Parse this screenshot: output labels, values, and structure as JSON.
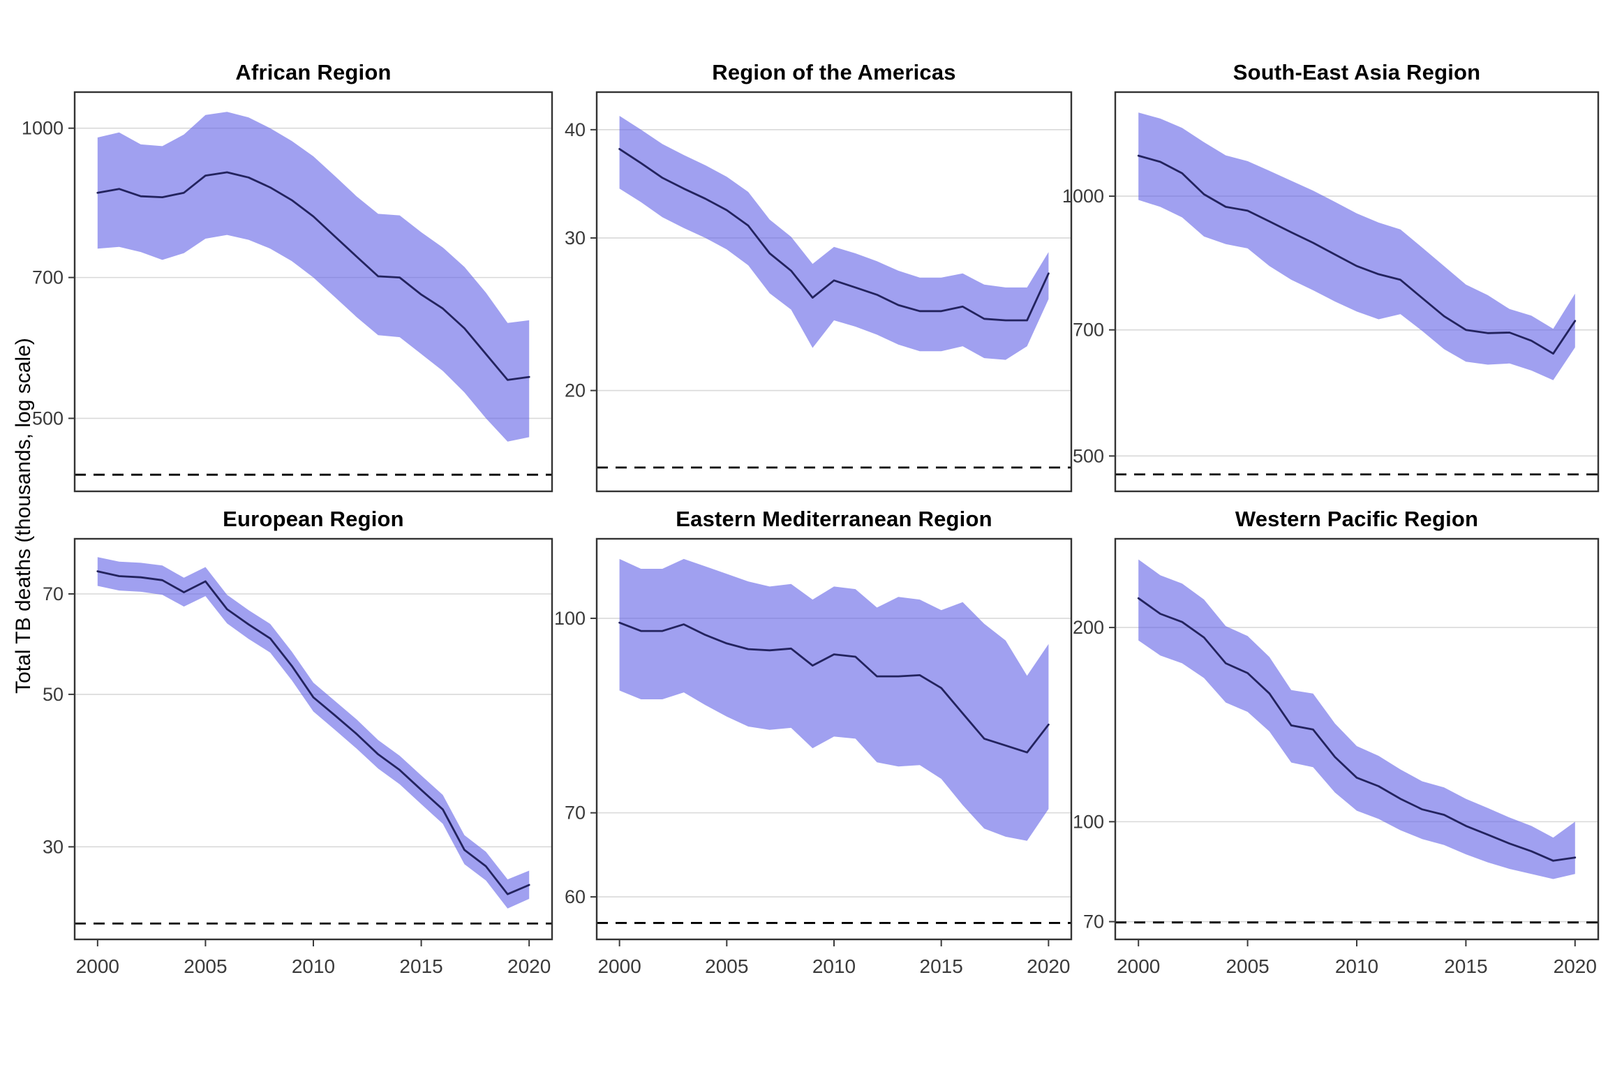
{
  "figure": {
    "ylabel": "Total TB deaths (thousands, log scale)",
    "background": "#ffffff",
    "colors": {
      "ribbon": "rgba(97,97,230,0.6)",
      "line": "#23235E",
      "grid": "#D9D9D9",
      "dashed_line": "#000000",
      "panel_border": "#333333",
      "tick_text": "#3A3A3A",
      "title_text": "#000000"
    }
  },
  "chart_data": {
    "type": "line",
    "subtype": "line-with-confidence-band-log-scale",
    "years": [
      2000,
      2001,
      2002,
      2003,
      2004,
      2005,
      2006,
      2007,
      2008,
      2009,
      2010,
      2011,
      2012,
      2013,
      2014,
      2015,
      2016,
      2017,
      2018,
      2019,
      2020
    ],
    "x_ticks": [
      2000,
      2005,
      2010,
      2015,
      2020
    ],
    "x_range": [
      2000,
      2020
    ],
    "grid": "major-horizontal-only",
    "legend": "none",
    "dashed_line_meaning": "horizontal reference line near bottom of each panel",
    "panels": [
      {
        "title": "African Region",
        "yticks": [
          1000,
          700,
          500
        ],
        "ylim": [
          420,
          1090
        ],
        "dashed": 437,
        "values": [
          857,
          865,
          850,
          848,
          857,
          893,
          900,
          889,
          868,
          842,
          810,
          772,
          736,
          702,
          700,
          672,
          650,
          620,
          583,
          548,
          552
        ],
        "lower": [
          750,
          753,
          744,
          730,
          742,
          768,
          775,
          766,
          750,
          728,
          700,
          668,
          637,
          610,
          607,
          583,
          560,
          532,
          500,
          473,
          478
        ],
        "upper": [
          978,
          990,
          962,
          958,
          985,
          1032,
          1040,
          1026,
          1000,
          970,
          935,
          892,
          850,
          815,
          812,
          780,
          752,
          718,
          675,
          628,
          632
        ]
      },
      {
        "title": "Region of the Americas",
        "yticks": [
          40,
          30,
          20
        ],
        "ylim": [
          15.3,
          44.2
        ],
        "dashed": 16.3,
        "values": [
          38.0,
          36.6,
          35.2,
          34.2,
          33.3,
          32.3,
          31.0,
          28.8,
          27.5,
          25.6,
          26.8,
          26.3,
          25.8,
          25.1,
          24.7,
          24.7,
          25.0,
          24.2,
          24.1,
          24.1,
          27.3
        ],
        "lower": [
          34.2,
          33.0,
          31.7,
          30.8,
          30.0,
          29.1,
          27.9,
          25.9,
          24.8,
          22.4,
          24.1,
          23.7,
          23.2,
          22.6,
          22.2,
          22.2,
          22.5,
          21.8,
          21.7,
          22.5,
          25.5
        ],
        "upper": [
          41.5,
          40.0,
          38.5,
          37.4,
          36.4,
          35.3,
          33.9,
          31.5,
          30.1,
          28.0,
          29.3,
          28.8,
          28.2,
          27.5,
          27.0,
          27.0,
          27.3,
          26.5,
          26.3,
          26.3,
          28.9
        ]
      },
      {
        "title": "South-East Asia Region",
        "yticks": [
          1000,
          700,
          500
        ],
        "ylim": [
          455,
          1320
        ],
        "dashed": 476,
        "values": [
          1114,
          1096,
          1063,
          1005,
          972,
          962,
          935,
          908,
          883,
          856,
          830,
          812,
          800,
          762,
          726,
          700,
          694,
          695,
          680,
          657,
          717
        ],
        "lower": [
          990,
          972,
          945,
          898,
          880,
          870,
          830,
          800,
          778,
          755,
          735,
          720,
          730,
          698,
          665,
          643,
          638,
          640,
          628,
          612,
          668
        ],
        "upper": [
          1250,
          1230,
          1200,
          1155,
          1115,
          1098,
          1070,
          1042,
          1015,
          985,
          955,
          932,
          915,
          872,
          830,
          790,
          768,
          740,
          727,
          702,
          771
        ]
      },
      {
        "title": "European Region",
        "yticks": [
          70,
          50,
          30
        ],
        "ylim": [
          22.0,
          84.2
        ],
        "dashed": 23.2,
        "values": [
          75.5,
          74.3,
          74.0,
          73.3,
          70.4,
          73.0,
          66.5,
          63.2,
          60.3,
          55.0,
          49.5,
          46.6,
          43.8,
          40.9,
          38.8,
          36.3,
          34.0,
          29.7,
          28.1,
          25.6,
          26.4
        ],
        "lower": [
          71.9,
          70.8,
          70.5,
          69.8,
          67.1,
          69.5,
          63.4,
          60.2,
          57.5,
          52.4,
          47.2,
          44.4,
          41.7,
          39.0,
          37.0,
          34.6,
          32.4,
          28.3,
          26.8,
          24.4,
          25.2
        ],
        "upper": [
          79.2,
          78.0,
          77.7,
          77.0,
          73.9,
          76.6,
          69.8,
          66.3,
          63.3,
          57.7,
          52.0,
          48.9,
          46.0,
          42.9,
          40.7,
          38.1,
          35.7,
          31.2,
          29.5,
          26.9,
          27.7
        ]
      },
      {
        "title": "Eastern Mediterranean Region",
        "yticks": [
          100,
          70,
          60
        ],
        "ylim": [
          55.5,
          115.7
        ],
        "dashed": 57.2,
        "values": [
          99.2,
          97.7,
          97.7,
          98.9,
          97.0,
          95.5,
          94.5,
          94.3,
          94.6,
          91.7,
          93.6,
          93.2,
          89.9,
          89.9,
          90.1,
          88.0,
          84.0,
          80.2,
          79.2,
          78.2,
          82.3
        ],
        "lower": [
          87.6,
          86.2,
          86.2,
          87.3,
          85.3,
          83.5,
          82.0,
          81.5,
          81.8,
          78.8,
          80.5,
          80.2,
          76.8,
          76.2,
          76.4,
          74.5,
          71.0,
          68.0,
          67.0,
          66.5,
          70.5
        ],
        "upper": [
          111.5,
          109.5,
          109.5,
          111.5,
          110.0,
          108.5,
          107.0,
          106.0,
          106.5,
          103.5,
          106.0,
          105.5,
          102.0,
          104.0,
          103.5,
          101.5,
          103.0,
          99.0,
          96.0,
          90.0,
          95.4
        ]
      },
      {
        "title": "Western Pacific Region",
        "yticks": [
          200,
          100,
          70
        ],
        "ylim": [
          65.7,
          274.5
        ],
        "dashed": 69.8,
        "values": [
          222,
          210,
          204,
          193,
          176,
          170,
          158,
          141,
          139,
          126,
          117,
          113.5,
          108.5,
          104.5,
          102.5,
          98.5,
          95.5,
          92.5,
          90,
          87,
          88
        ],
        "lower": [
          191,
          181,
          176,
          167,
          153,
          148,
          138,
          123.5,
          121.5,
          111,
          104,
          101,
          97,
          94,
          92,
          89,
          86.5,
          84.5,
          83,
          81.5,
          83
        ],
        "upper": [
          255,
          241,
          234,
          221,
          201,
          194,
          180,
          160,
          158,
          142,
          131,
          126.5,
          120.5,
          115.5,
          113,
          108.5,
          105,
          101.5,
          98.5,
          94.5,
          100
        ]
      }
    ]
  }
}
